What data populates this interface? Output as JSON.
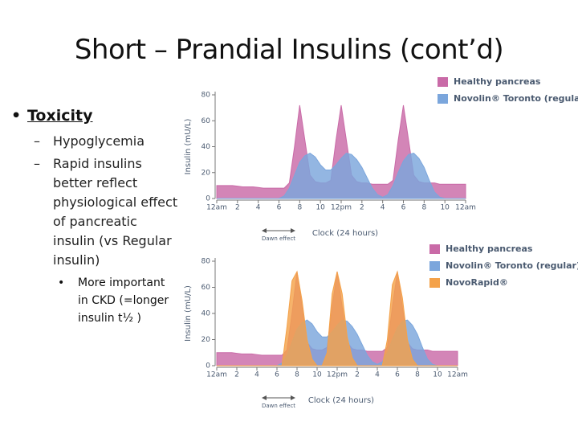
{
  "title": "Short – Prandial Insulins (cont’d)",
  "bullets": {
    "heading": "Toxicity",
    "items": [
      "Hypoglycemia",
      "Rapid insulins better reflect physiological effect of pancreatic insulin (vs Regular insulin)"
    ],
    "subitems": [
      "More important in CKD (=longer insulin t½ )"
    ]
  },
  "chart_data": [
    {
      "type": "area",
      "xlabel": "Clock (24 hours)",
      "ylabel": "Insulin (mU/L)",
      "annotation": "Dawn effect",
      "xlim": [
        0,
        24
      ],
      "ylim": [
        0,
        80
      ],
      "yticks": [
        0,
        20,
        40,
        60,
        80
      ],
      "xticks": [
        {
          "value": 0,
          "label": "12am"
        },
        2,
        4,
        6,
        8,
        10,
        {
          "value": 12,
          "label": "12pm"
        },
        {
          "value": 14,
          "label": "2"
        },
        {
          "value": 16,
          "label": "4"
        },
        {
          "value": 18,
          "label": "6"
        },
        {
          "value": 20,
          "label": "8"
        },
        {
          "value": 22,
          "label": "10"
        },
        {
          "value": 24,
          "label": "12am"
        }
      ],
      "legend": "top-right",
      "x": [
        0,
        0.5,
        1,
        1.5,
        2,
        2.5,
        3,
        3.5,
        4,
        4.5,
        5,
        5.5,
        6,
        6.5,
        7,
        7.5,
        8,
        8.5,
        9,
        9.5,
        10,
        10.5,
        11,
        11.5,
        12,
        12.5,
        13,
        13.5,
        14,
        14.5,
        15,
        15.5,
        16,
        16.5,
        17,
        17.5,
        18,
        18.5,
        19,
        19.5,
        20,
        20.5,
        21,
        21.5,
        22,
        22.5,
        23,
        23.5,
        24
      ],
      "series": [
        {
          "name": "Healthy pancreas",
          "color": "#c96aa7",
          "values": [
            10,
            10,
            10,
            10,
            9.5,
            9,
            9,
            9,
            8.5,
            8,
            8,
            8,
            8,
            8,
            12,
            40,
            72,
            45,
            18,
            13,
            12,
            12,
            14,
            45,
            72,
            45,
            18,
            13,
            12,
            12,
            11,
            11,
            11,
            11,
            14,
            45,
            72,
            45,
            18,
            13,
            12,
            12,
            12,
            11,
            11,
            11,
            11,
            11,
            11
          ]
        },
        {
          "name": "Novolin® Toronto (regular)",
          "color": "#7ba6dc",
          "values": [
            0,
            0,
            0,
            0,
            0,
            0,
            0,
            0,
            0,
            0,
            0,
            0,
            0,
            2,
            8,
            18,
            28,
            33,
            35,
            32,
            26,
            22,
            22,
            26,
            31,
            35,
            34,
            30,
            24,
            16,
            8,
            3,
            1,
            3,
            10,
            20,
            29,
            34,
            35,
            31,
            24,
            14,
            5,
            1,
            0,
            0,
            0,
            0,
            0
          ]
        }
      ]
    },
    {
      "type": "area",
      "xlabel": "Clock (24 hours)",
      "ylabel": "Insulin (mU/L)",
      "annotation": "Dawn effect",
      "xlim": [
        0,
        24
      ],
      "ylim": [
        0,
        80
      ],
      "yticks": [
        0,
        20,
        40,
        60,
        80
      ],
      "xticks": [
        {
          "value": 0,
          "label": "12am"
        },
        2,
        4,
        6,
        8,
        10,
        {
          "value": 12,
          "label": "12pm"
        },
        {
          "value": 14,
          "label": "2"
        },
        {
          "value": 16,
          "label": "4"
        },
        {
          "value": 18,
          "label": "6"
        },
        {
          "value": 20,
          "label": "8"
        },
        {
          "value": 22,
          "label": "10"
        },
        {
          "value": 24,
          "label": "12am"
        }
      ],
      "legend": "top-right",
      "x": [
        0,
        0.5,
        1,
        1.5,
        2,
        2.5,
        3,
        3.5,
        4,
        4.5,
        5,
        5.5,
        6,
        6.5,
        7,
        7.5,
        8,
        8.5,
        9,
        9.5,
        10,
        10.5,
        11,
        11.5,
        12,
        12.5,
        13,
        13.5,
        14,
        14.5,
        15,
        15.5,
        16,
        16.5,
        17,
        17.5,
        18,
        18.5,
        19,
        19.5,
        20,
        20.5,
        21,
        21.5,
        22,
        22.5,
        23,
        23.5,
        24
      ],
      "series": [
        {
          "name": "Healthy pancreas",
          "color": "#c96aa7",
          "values": [
            10,
            10,
            10,
            10,
            9.5,
            9,
            9,
            9,
            8.5,
            8,
            8,
            8,
            8,
            8,
            12,
            40,
            72,
            45,
            18,
            13,
            12,
            12,
            14,
            45,
            72,
            45,
            18,
            13,
            12,
            12,
            11,
            11,
            11,
            11,
            14,
            45,
            72,
            45,
            18,
            13,
            12,
            12,
            12,
            11,
            11,
            11,
            11,
            11,
            11
          ]
        },
        {
          "name": "Novolin® Toronto (regular)",
          "color": "#7ba6dc",
          "values": [
            0,
            0,
            0,
            0,
            0,
            0,
            0,
            0,
            0,
            0,
            0,
            0,
            0,
            2,
            8,
            18,
            28,
            33,
            35,
            32,
            26,
            22,
            22,
            26,
            31,
            35,
            34,
            30,
            24,
            16,
            8,
            3,
            1,
            3,
            10,
            20,
            29,
            34,
            35,
            31,
            24,
            14,
            5,
            1,
            0,
            0,
            0,
            0,
            0
          ]
        },
        {
          "name": "NovoRapid®",
          "color": "#f4a24a",
          "values": [
            0,
            0,
            0,
            0,
            0,
            0,
            0,
            0,
            0,
            0,
            0,
            0,
            0,
            0,
            30,
            65,
            72,
            50,
            20,
            5,
            0,
            0,
            10,
            55,
            72,
            55,
            22,
            6,
            0,
            0,
            0,
            0,
            0,
            0,
            20,
            62,
            72,
            52,
            20,
            5,
            0,
            0,
            0,
            0,
            0,
            0,
            0,
            0,
            0
          ]
        }
      ]
    }
  ]
}
